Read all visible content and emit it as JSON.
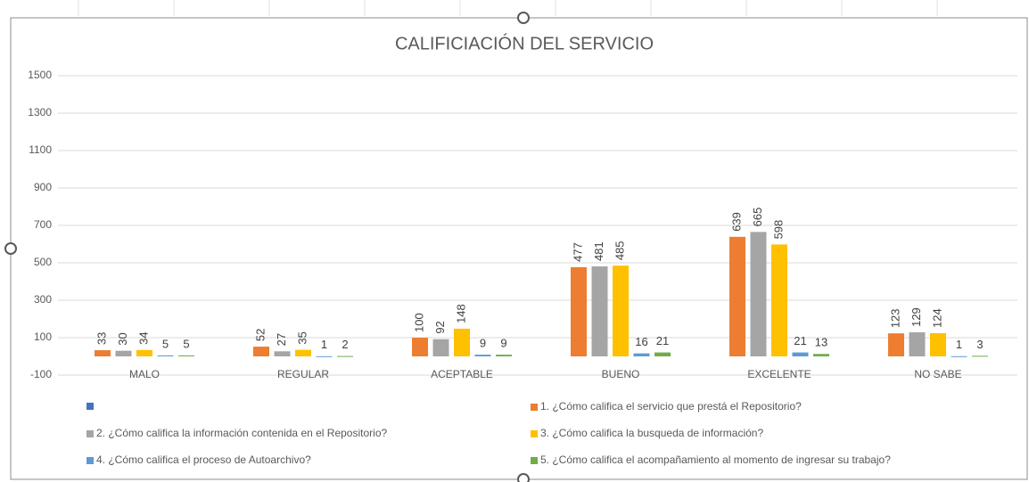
{
  "chart_data": {
    "type": "bar",
    "title": "CALIFICIACIÓN DEL SERVICIO",
    "categories": [
      "MALO",
      "REGULAR",
      "ACEPTABLE",
      "BUENO",
      "EXCELENTE",
      "NO SABE"
    ],
    "series": [
      {
        "name": "1. ¿Cómo califica el servicio que prestá el Repositorio?",
        "color": "#ed7d31",
        "values": [
          33,
          52,
          100,
          477,
          639,
          123
        ]
      },
      {
        "name": "2. ¿Cómo califica la información contenida en el Repositorio?",
        "color": "#a5a5a5",
        "values": [
          30,
          27,
          92,
          481,
          665,
          129
        ]
      },
      {
        "name": "3. ¿Cómo califica la busqueda de información?",
        "color": "#ffc000",
        "values": [
          34,
          35,
          148,
          485,
          598,
          124
        ]
      },
      {
        "name": "4. ¿Cómo califica el proceso de Autoarchivo?",
        "color": "#5b9bd5",
        "values": [
          5,
          1,
          9,
          16,
          21,
          1
        ]
      },
      {
        "name": "5. ¿Cómo califica el acompañamiento al momento de ingresar su trabajo?",
        "color": "#70ad47",
        "values": [
          5,
          2,
          9,
          21,
          13,
          3
        ]
      }
    ],
    "ylim": [
      -100,
      1500
    ],
    "yticks": [
      -100,
      100,
      300,
      500,
      700,
      900,
      1100,
      1300,
      1500
    ],
    "grid": true
  }
}
